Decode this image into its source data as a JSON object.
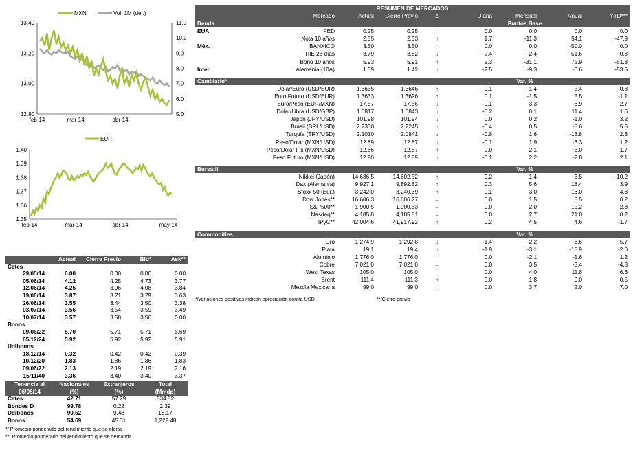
{
  "chart_data": [
    {
      "type": "line",
      "title": "",
      "legend": [
        "MXN",
        "Vol. 1M (der.)"
      ],
      "legend_placement": "top",
      "xlabels": [
        "feb-14",
        "mar-14",
        "abr-14"
      ],
      "ylim": [
        12.8,
        13.4
      ],
      "yticks": [
        "13.40",
        "13.20",
        "13.00",
        "12.80"
      ],
      "y2lim": [
        5.0,
        11.0
      ],
      "y2ticks": [
        "11.0",
        "10.0",
        "9.0",
        "8.0",
        "7.0",
        "6.0",
        "5.0"
      ],
      "colors": {
        "MXN": "#a4c33a",
        "Vol": "#a6a6a6"
      },
      "series": [
        {
          "name": "MXN",
          "axis": "left",
          "values": [
            13.28,
            13.3,
            13.25,
            13.33,
            13.22,
            13.3,
            13.35,
            13.26,
            13.31,
            13.24,
            13.27,
            13.22,
            13.25,
            13.2,
            13.24,
            13.18,
            13.22,
            13.15,
            13.2,
            13.12,
            13.18,
            13.1,
            13.15,
            13.05,
            13.1,
            13.06,
            13.12,
            13.16,
            13.08,
            13.02,
            13.05,
            13.0,
            13.03,
            12.97,
            13.05,
            13.1,
            13.0,
            13.04,
            12.98,
            13.06,
            13.02,
            13.07,
            13.0,
            12.96,
            13.01,
            13.04,
            12.98,
            12.92,
            12.96,
            12.9,
            12.93,
            12.88,
            12.9,
            12.87,
            12.86,
            12.89
          ]
        },
        {
          "name": "Vol. 1M (der.)",
          "axis": "right",
          "values": [
            9.3,
            9.1,
            9.0,
            9.2,
            9.0,
            8.9,
            9.1,
            9.0,
            9.2,
            9.1,
            9.0,
            9.0,
            9.1,
            8.8,
            8.7,
            8.6,
            8.8,
            8.5,
            8.6,
            8.4,
            8.2,
            8.3,
            8.4,
            8.0,
            8.1,
            8.2,
            8.0,
            7.9,
            8.1,
            7.8,
            7.9,
            8.1,
            8.0,
            8.2,
            7.9,
            8.0,
            7.8,
            7.9,
            7.6,
            7.8,
            7.7,
            7.8,
            7.5,
            7.6,
            7.5,
            7.4,
            7.3,
            7.2,
            7.4,
            7.1,
            7.0,
            7.2,
            7.0,
            6.9,
            7.0,
            6.8
          ]
        }
      ]
    },
    {
      "type": "line",
      "title": "",
      "legend": [
        "EUR"
      ],
      "legend_placement": "top",
      "xlabels": [
        "feb-14",
        "mar-14",
        "abr-14",
        "may-14"
      ],
      "ylim": [
        1.35,
        1.4
      ],
      "yticks": [
        "1.40",
        "1.39",
        "1.38",
        "1.37",
        "1.36",
        "1.35"
      ],
      "colors": {
        "EUR": "#a4c33a"
      },
      "series": [
        {
          "name": "EUR",
          "values": [
            1.352,
            1.356,
            1.354,
            1.358,
            1.356,
            1.36,
            1.358,
            1.365,
            1.362,
            1.37,
            1.368,
            1.372,
            1.375,
            1.378,
            1.38,
            1.383,
            1.38,
            1.382,
            1.385,
            1.384,
            1.383,
            1.379,
            1.378,
            1.381,
            1.378,
            1.379,
            1.381,
            1.38,
            1.382,
            1.381,
            1.383,
            1.382,
            1.384,
            1.381,
            1.379,
            1.377,
            1.379,
            1.381,
            1.383,
            1.384,
            1.385,
            1.387,
            1.39,
            1.387,
            1.388,
            1.39,
            1.386,
            1.383,
            1.382,
            1.385,
            1.387,
            1.389,
            1.39,
            1.389,
            1.387,
            1.386,
            1.385,
            1.383,
            1.385,
            1.387,
            1.386,
            1.389,
            1.385,
            1.389,
            1.387,
            1.384,
            1.382,
            1.381,
            1.383,
            1.38,
            1.378,
            1.376,
            1.375,
            1.376,
            1.371,
            1.373,
            1.369,
            1.367,
            1.369,
            1.368
          ]
        }
      ]
    }
  ],
  "market": {
    "title": "RESUMEN DE MERCADOS",
    "headers": [
      "Mercado",
      "Actual",
      "Cierre Previo",
      "Δ",
      "Diaria",
      "Mensual",
      "Anual",
      "YTD***"
    ],
    "sections": [
      {
        "name": "Deuda",
        "unit": "Puntos Base",
        "rows": [
          {
            "grp": "EUA",
            "name": "FED",
            "act": "0.25",
            "prev": "0.25",
            "dir": "eq",
            "d": "0.0",
            "m": "0.0",
            "a": "0.0",
            "y": "0.0"
          },
          {
            "grp": "",
            "name": "Nota 10 años",
            "act": "2.55",
            "prev": "2.53",
            "dir": "up",
            "d": "1.7",
            "m": "-11.3",
            "a": "54.1",
            "y": "-47.9"
          },
          {
            "grp": "Méx.",
            "name": "BANXICO",
            "act": "3.50",
            "prev": "3.50",
            "dir": "eq",
            "d": "0.0",
            "m": "0.0",
            "a": "-50.0",
            "y": "0.0"
          },
          {
            "grp": "",
            "name": "TIIE 28 días",
            "act": "3.79",
            "prev": "3.82",
            "dir": "dn",
            "d": "-2.4",
            "m": "-2.4",
            "a": "-51.6",
            "y": "-0.3"
          },
          {
            "grp": "",
            "name": "Bono 10 años",
            "act": "5.93",
            "prev": "5.91",
            "dir": "up",
            "d": "2.3",
            "m": "-31.1",
            "a": "75.9",
            "y": "-51.8"
          },
          {
            "grp": "Inter.",
            "name": "Alemania (10A)",
            "act": "1.39",
            "prev": "1.42",
            "dir": "dn",
            "d": "-2.5",
            "m": "-9.3",
            "a": "-6.6",
            "y": "-53.5"
          }
        ]
      },
      {
        "name": "Cambiario*",
        "unit": "Var. %",
        "rows": [
          {
            "grp": "",
            "name": "Dólar/Euro (USD/EUR)",
            "act": "1.3635",
            "prev": "1.3646",
            "dir": "up",
            "d": "-0.1",
            "m": "-1.4",
            "a": "5.4",
            "y": "-0.8"
          },
          {
            "grp": "",
            "name": "Euro Futuro (USD/EUR)",
            "act": "1.3633",
            "prev": "1.3626",
            "dir": "up",
            "d": "0.1",
            "m": "-1.5",
            "a": "5.5",
            "y": "-1.1"
          },
          {
            "grp": "",
            "name": "Euro/Peso (EUR/MXN)",
            "act": "17.57",
            "prev": "17.56",
            "dir": "dn",
            "d": "-0.1",
            "m": "3.3",
            "a": "-8.9",
            "y": "2.7"
          },
          {
            "grp": "",
            "name": "Dólar/Libra (USD/GBP)",
            "act": "1.6817",
            "prev": "1.6843",
            "dir": "dn",
            "d": "-0.2",
            "m": "0.1",
            "a": "11.4",
            "y": "1.6"
          },
          {
            "grp": "",
            "name": "Japón (JPY/USD)",
            "act": "101.98",
            "prev": "101.94",
            "dir": "dn",
            "d": "0.0",
            "m": "0.2",
            "a": "-1.0",
            "y": "3.2"
          },
          {
            "grp": "",
            "name": "Brasil (BRL/USD)",
            "act": "2.2330",
            "prev": "2.2245",
            "dir": "dn",
            "d": "-0.4",
            "m": "0.5",
            "a": "-8.6",
            "y": "5.5"
          },
          {
            "grp": "",
            "name": "Turquía (TRY/USD)",
            "act": "2.1010",
            "prev": "2.0841",
            "dir": "dn",
            "d": "-0.8",
            "m": "1.6",
            "a": "-13.8",
            "y": "2.3"
          },
          {
            "grp": "",
            "name": "Peso/Dólar (MXN/USD)",
            "act": "12.89",
            "prev": "12.87",
            "dir": "dn",
            "d": "-0.1",
            "m": "1.9",
            "a": "-3.3",
            "y": "1.2"
          },
          {
            "grp": "",
            "name": "Peso/Dólar Fix (MXN/USD)",
            "act": "12.86",
            "prev": "12.87",
            "dir": "up",
            "d": "0.0",
            "m": "2.1",
            "a": "-3.0",
            "y": "1.7"
          },
          {
            "grp": "",
            "name": "Peso Futuro (MXN/USD)",
            "act": "12.90",
            "prev": "12.89",
            "dir": "dn",
            "d": "-0.1",
            "m": "2.2",
            "a": "-2.8",
            "y": "2.1"
          }
        ]
      },
      {
        "name": "Bursátil",
        "unit": "Var. %",
        "rows": [
          {
            "grp": "",
            "name": "Nikkei (Japón)",
            "act": "14,636.5",
            "prev": "14,602.52",
            "dir": "up",
            "d": "0.2",
            "m": "1.4",
            "a": "3.5",
            "y": "-10.2"
          },
          {
            "grp": "",
            "name": "Dax (Alemania)",
            "act": "9,927.1",
            "prev": "9,892.82",
            "dir": "up",
            "d": "0.3",
            "m": "5.6",
            "a": "18.4",
            "y": "3.9"
          },
          {
            "grp": "",
            "name": "Stoxx 50 (Eur.)",
            "act": "3,242.0",
            "prev": "3,240.39",
            "dir": "up",
            "d": "0.1",
            "m": "3.0",
            "a": "16.0",
            "y": "4.3"
          },
          {
            "grp": "",
            "name": "Dow Jones**",
            "act": "16,606.3",
            "prev": "16,606.27",
            "dir": "eq",
            "d": "0.0",
            "m": "1.5",
            "a": "8.5",
            "y": "0.2"
          },
          {
            "grp": "",
            "name": "S&P500**",
            "act": "1,900.5",
            "prev": "1,900.53",
            "dir": "eq",
            "d": "0.0",
            "m": "2.0",
            "a": "15.2",
            "y": "2.8"
          },
          {
            "grp": "",
            "name": "Nasdaq**",
            "act": "4,185.8",
            "prev": "4,185.81",
            "dir": "eq",
            "d": "0.0",
            "m": "2.7",
            "a": "21.0",
            "y": "0.2"
          },
          {
            "grp": "",
            "name": "IPyC**",
            "act": "42,004.6",
            "prev": "41,917.92",
            "dir": "up",
            "d": "0.2",
            "m": "4.5",
            "a": "4.6",
            "y": "-1.7"
          }
        ]
      },
      {
        "name": "Commodities",
        "unit": "Var. %",
        "rows": [
          {
            "grp": "",
            "name": "Oro",
            "act": "1,274.9",
            "prev": "1,292.8",
            "dir": "dn2",
            "d": "-1.4",
            "m": "-2.2",
            "a": "-8.6",
            "y": "5.7"
          },
          {
            "grp": "",
            "name": "Plata",
            "act": "19.1",
            "prev": "19.4",
            "dir": "dn2",
            "d": "-1.9",
            "m": "-3.1",
            "a": "-15.9",
            "y": "-2.0"
          },
          {
            "grp": "",
            "name": "Aluminio",
            "act": "1,776.0",
            "prev": "1,776.0",
            "dir": "eq",
            "d": "0.0",
            "m": "-2.1",
            "a": "-1.6",
            "y": "1.2"
          },
          {
            "grp": "",
            "name": "Cobre",
            "act": "7,021.0",
            "prev": "7,021.0",
            "dir": "eq",
            "d": "0.0",
            "m": "3.5",
            "a": "-3.4",
            "y": "-4.8"
          },
          {
            "grp": "",
            "name": "West Texas",
            "act": "105.0",
            "prev": "105.0",
            "dir": "eq",
            "d": "0.0",
            "m": "4.0",
            "a": "11.8",
            "y": "6.6"
          },
          {
            "grp": "",
            "name": "Brent",
            "act": "111.4",
            "prev": "111.3",
            "dir": "up",
            "d": "0.0",
            "m": "1.8",
            "a": "9.0",
            "y": "0.5"
          },
          {
            "grp": "",
            "name": "Mezcla Mexicana",
            "act": "99.0",
            "prev": "99.0",
            "dir": "eq",
            "d": "0.0",
            "m": "3.7",
            "a": "2.0",
            "y": "7.0"
          }
        ]
      }
    ],
    "note1": "*/variaciones positivas indican apreciación contra USD.",
    "note2": "**/Cierre previo"
  },
  "rates": {
    "headers": [
      "",
      "Actual",
      "Cierre Previo",
      "Bid*",
      "Ask**"
    ],
    "groups": [
      {
        "name": "Cetes",
        "rows": [
          [
            "29/05/14",
            "0.00",
            "0.00",
            "0.00",
            "0.00"
          ],
          [
            "05/06/14",
            "4.12",
            "4.25",
            "4.73",
            "3.77"
          ],
          [
            "12/06/14",
            "4.25",
            "3.96",
            "4.08",
            "3.84"
          ],
          [
            "19/06/14",
            "3.87",
            "3.71",
            "3.79",
            "3.63"
          ],
          [
            "26/06/14",
            "3.55",
            "3.44",
            "3.50",
            "3.38"
          ],
          [
            "03/07/14",
            "3.56",
            "3.54",
            "3.59",
            "3.49"
          ],
          [
            "10/07/14",
            "3.57",
            "3.58",
            "3.50",
            "0.00"
          ]
        ]
      },
      {
        "name": "Bonos",
        "rows": [
          [
            "09/06/22",
            "5.70",
            "5.71",
            "5.71",
            "5.69"
          ],
          [
            "05/12/24",
            "5.92",
            "5.92",
            "5.92",
            "5.91"
          ]
        ]
      },
      {
        "name": "Udibonos",
        "rows": [
          [
            "18/12/14",
            "0.32",
            "0.42",
            "0.42",
            "0.39"
          ],
          [
            "10/12/20",
            "1.83",
            "1.86",
            "1.86",
            "1.83"
          ],
          [
            "09/06/22",
            "2.13",
            "2.19",
            "2.19",
            "2.16"
          ],
          [
            "15/11/40",
            "3.36",
            "3.40",
            "3.40",
            "3.37"
          ]
        ]
      }
    ],
    "tenencia_headers": [
      [
        "Tenencia al",
        "Nacionales",
        "Extranjeros",
        "Total"
      ],
      [
        "06/05/14",
        "(%)",
        "(%)",
        "(Mmdp)"
      ]
    ],
    "tenencia": [
      [
        "Cetes",
        "42.71",
        "57.29",
        "534.82"
      ],
      [
        "Bondes D",
        "99.78",
        "0.22",
        "2.39"
      ],
      [
        "Udibonos",
        "90.52",
        "9.48",
        "18.17"
      ],
      [
        "Bonos",
        "54.69",
        "45.31",
        "1,222.48"
      ]
    ],
    "note1": "*/ Promedio ponderado del rendimiento que se oferta",
    "note2": "**/ Promedio ponderado del rendimiento que se demanda"
  }
}
